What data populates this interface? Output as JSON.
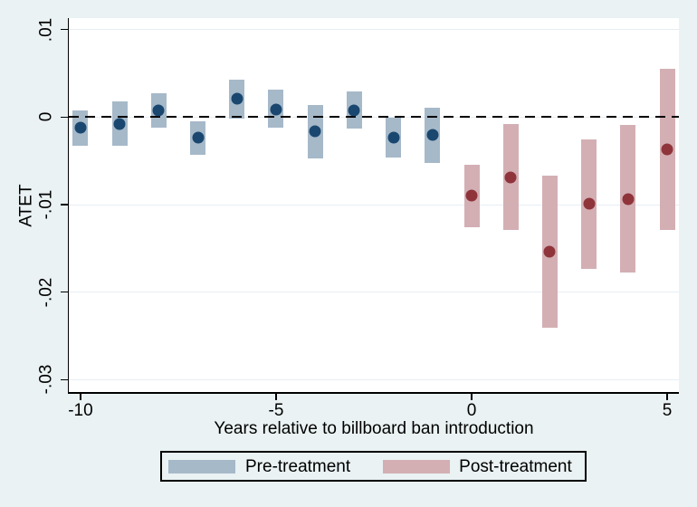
{
  "figure": {
    "background_color": "#eaf2f3",
    "plot_background_color": "#ffffff",
    "gridline_color": "#e7eef4",
    "axis_color": "#000000"
  },
  "chart_data": {
    "type": "scatter",
    "title": "",
    "xlabel": "Years relative to billboard ban introduction",
    "ylabel": "ATET",
    "xlim": [
      -10.3,
      5.3
    ],
    "ylim": [
      -0.0314,
      0.0113
    ],
    "grid": true,
    "zero_reference_line": {
      "y": 0,
      "style": "dashed",
      "color": "#000000"
    },
    "xticks": {
      "values": [
        -10,
        -5,
        0,
        5
      ],
      "labels": [
        "-10",
        "-5",
        "0",
        "5"
      ]
    },
    "yticks": {
      "values": [
        0.01,
        0,
        -0.01,
        -0.02,
        -0.03
      ],
      "labels": [
        ".01",
        "0",
        "-.01",
        "-.02",
        "-.03"
      ]
    },
    "legend": {
      "position": "bottom-center",
      "entries": [
        "Pre-treatment",
        "Post-treatment"
      ]
    },
    "series": [
      {
        "name": "Pre-treatment",
        "marker_color": "#1a476f",
        "band_color": "#a6b9c9",
        "points": [
          {
            "x": -10,
            "y": -0.0012,
            "ci_low": -0.0033,
            "ci_high": 0.0008
          },
          {
            "x": -9,
            "y": -0.0008,
            "ci_low": -0.0033,
            "ci_high": 0.0018
          },
          {
            "x": -8,
            "y": 0.0008,
            "ci_low": -0.0012,
            "ci_high": 0.0027
          },
          {
            "x": -7,
            "y": -0.0023,
            "ci_low": -0.0043,
            "ci_high": -0.0005
          },
          {
            "x": -6,
            "y": 0.0021,
            "ci_low": -0.0002,
            "ci_high": 0.0043
          },
          {
            "x": -5,
            "y": 0.0009,
            "ci_low": -0.0012,
            "ci_high": 0.0031
          },
          {
            "x": -4,
            "y": -0.0016,
            "ci_low": -0.0047,
            "ci_high": 0.0014
          },
          {
            "x": -3,
            "y": 0.0008,
            "ci_low": -0.0013,
            "ci_high": 0.0029
          },
          {
            "x": -2,
            "y": -0.0023,
            "ci_low": -0.0046,
            "ci_high": -0.0001
          },
          {
            "x": -1,
            "y": -0.002,
            "ci_low": -0.0052,
            "ci_high": 0.0011
          }
        ]
      },
      {
        "name": "Post-treatment",
        "marker_color": "#8f343b",
        "band_color": "#d3afb4",
        "points": [
          {
            "x": 0,
            "y": -0.009,
            "ci_low": -0.0126,
            "ci_high": -0.0054
          },
          {
            "x": 1,
            "y": -0.0069,
            "ci_low": -0.0129,
            "ci_high": -0.0008
          },
          {
            "x": 2,
            "y": -0.0154,
            "ci_low": -0.0241,
            "ci_high": -0.0067
          },
          {
            "x": 3,
            "y": -0.0099,
            "ci_low": -0.0173,
            "ci_high": -0.0026
          },
          {
            "x": 4,
            "y": -0.0094,
            "ci_low": -0.0178,
            "ci_high": -0.0009
          },
          {
            "x": 5,
            "y": -0.0037,
            "ci_low": -0.0129,
            "ci_high": 0.0055
          }
        ]
      }
    ]
  }
}
